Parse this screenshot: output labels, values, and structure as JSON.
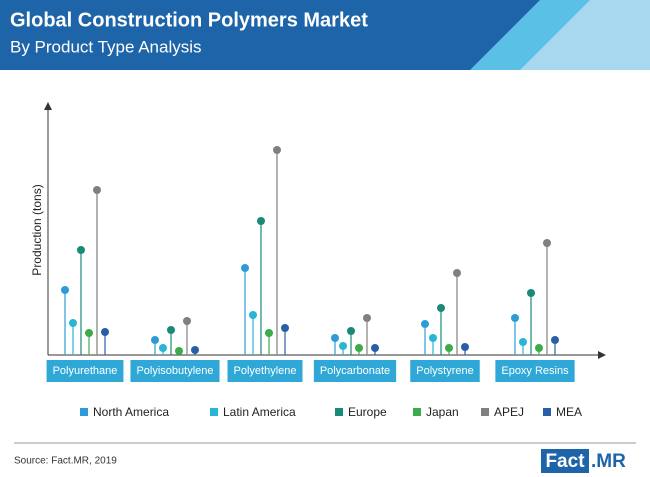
{
  "chart_data": {
    "type": "lollipop",
    "title": "Global Construction Polymers Market",
    "subtitle": "By Product Type Analysis",
    "y_label": "Production (tons)",
    "source": "Source: Fact.MR, 2019",
    "categories": [
      "Polyurethane",
      "Polyisobutylene",
      "Polyethylene",
      "Polycarbonate",
      "Polystyrene",
      "Epoxy Resins"
    ],
    "series": [
      {
        "name": "North America",
        "color": "#2e9bd6",
        "values": [
          65,
          15,
          87,
          17,
          31,
          37
        ]
      },
      {
        "name": "Latin America",
        "color": "#29b5d6",
        "values": [
          32,
          7,
          40,
          9,
          17,
          13
        ]
      },
      {
        "name": "Europe",
        "color": "#1a8a78",
        "values": [
          105,
          25,
          134,
          24,
          47,
          62
        ]
      },
      {
        "name": "Japan",
        "color": "#3dab4a",
        "values": [
          22,
          4,
          22,
          7,
          7,
          7
        ]
      },
      {
        "name": "APEJ",
        "color": "#808080",
        "values": [
          165,
          34,
          205,
          37,
          82,
          112
        ]
      },
      {
        "name": "MEA",
        "color": "#2a5fa8",
        "values": [
          23,
          5,
          27,
          7,
          8,
          15
        ]
      }
    ],
    "ylim": [
      0,
      250
    ]
  },
  "logo": {
    "name": "Fact",
    "suffix": ".MR"
  }
}
